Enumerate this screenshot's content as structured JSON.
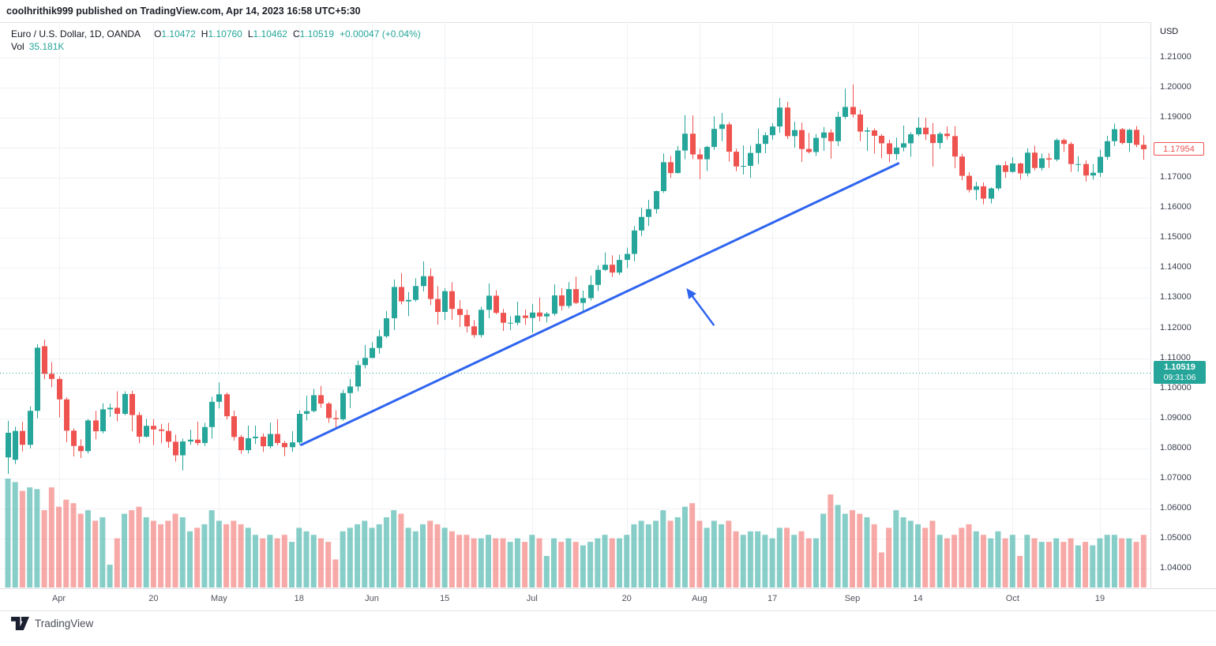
{
  "header": {
    "publisher_line": "coolhrithik999 published on TradingView.com, Apr 14, 2023 16:58 UTC+5:30"
  },
  "legend": {
    "title": "Euro / U.S. Dollar, 1D, OANDA",
    "o_label": "O",
    "o_value": "1.10472",
    "h_label": "H",
    "h_value": "1.10760",
    "l_label": "L",
    "l_value": "1.10462",
    "c_label": "C",
    "c_value": "1.10519",
    "change": "+0.00047 (+0.04%)",
    "vol_label": "Vol",
    "vol_value": "35.181K"
  },
  "price_axis": {
    "currency": "USD",
    "ticks": [
      "1.21000",
      "1.20000",
      "1.19000",
      "1.18000",
      "1.17000",
      "1.16000",
      "1.15000",
      "1.14000",
      "1.13000",
      "1.12000",
      "1.11000",
      "1.10000",
      "1.09000",
      "1.08000",
      "1.07000",
      "1.06000",
      "1.05000",
      "1.04000"
    ],
    "last_price": "1.17954",
    "current_price": "1.10519",
    "countdown": "09:31:06"
  },
  "time_axis": {
    "ticks": [
      {
        "day": 7,
        "label": "Apr"
      },
      {
        "day": 20,
        "label": "20"
      },
      {
        "day": 29,
        "label": "May"
      },
      {
        "day": 40,
        "label": "18"
      },
      {
        "day": 50,
        "label": "Jun"
      },
      {
        "day": 60,
        "label": "15"
      },
      {
        "day": 72,
        "label": "Jul"
      },
      {
        "day": 85,
        "label": "20"
      },
      {
        "day": 95,
        "label": "Aug"
      },
      {
        "day": 105,
        "label": "17"
      },
      {
        "day": 116,
        "label": "Sep"
      },
      {
        "day": 125,
        "label": "14"
      },
      {
        "day": 138,
        "label": "Oct"
      },
      {
        "day": 150,
        "label": "19"
      }
    ]
  },
  "footer": {
    "brand": "TradingView"
  },
  "colors": {
    "up": "#26a69a",
    "down": "#ef5350",
    "vol_up": "rgba(38,166,154,0.55)",
    "vol_down": "rgba(239,83,80,0.5)",
    "trendline": "#2e64f0",
    "current_line": "#26a69a",
    "grid": "#f0f1f4",
    "axis_text": "#3c4150"
  },
  "chart_data": {
    "type": "candlestick",
    "title": "Euro / U.S. Dollar, 1D, OANDA",
    "symbol": "EUR/USD",
    "interval": "1D",
    "y_range": [
      1.04,
      1.21
    ],
    "grid": true,
    "volume_unit": "K",
    "current_price": 1.10519,
    "last_close": 1.17954,
    "candles_format": [
      "open",
      "high",
      "low",
      "close",
      "volume_k"
    ],
    "candles": [
      [
        1.077,
        1.0892,
        1.0715,
        1.0852,
        62
      ],
      [
        1.0762,
        1.0872,
        1.0748,
        1.0858,
        60
      ],
      [
        1.0858,
        1.0888,
        1.079,
        1.0812,
        55
      ],
      [
        1.0812,
        1.094,
        1.08,
        1.0925,
        57
      ],
      [
        1.0925,
        1.1147,
        1.09,
        1.1135,
        56
      ],
      [
        1.114,
        1.1162,
        1.103,
        1.1048,
        44
      ],
      [
        1.1048,
        1.1087,
        1.1003,
        1.1031,
        57
      ],
      [
        1.1031,
        1.1039,
        1.0903,
        1.0963,
        46
      ],
      [
        1.0963,
        1.097,
        1.082,
        1.0859,
        50
      ],
      [
        1.0859,
        1.0867,
        1.0773,
        1.0808,
        48
      ],
      [
        1.0808,
        1.083,
        1.0768,
        1.0791,
        42
      ],
      [
        1.0791,
        1.0898,
        1.0783,
        1.0893,
        44
      ],
      [
        1.0893,
        1.0925,
        1.083,
        1.0857,
        38
      ],
      [
        1.0857,
        1.095,
        1.085,
        1.093,
        40
      ],
      [
        1.093,
        1.0949,
        1.0905,
        1.0935,
        13
      ],
      [
        1.0935,
        1.099,
        1.089,
        1.0915,
        28
      ],
      [
        1.0915,
        1.099,
        1.091,
        1.0981,
        42
      ],
      [
        1.0981,
        1.0992,
        1.0857,
        1.0911,
        44
      ],
      [
        1.0911,
        1.0921,
        1.0817,
        1.0839,
        46
      ],
      [
        1.0839,
        1.0898,
        1.0836,
        1.0875,
        40
      ],
      [
        1.0875,
        1.0897,
        1.0811,
        1.0863,
        38
      ],
      [
        1.0863,
        1.0882,
        1.0817,
        1.0858,
        36
      ],
      [
        1.0858,
        1.0885,
        1.0802,
        1.0822,
        38
      ],
      [
        1.0822,
        1.0846,
        1.0756,
        1.0777,
        42
      ],
      [
        1.0777,
        1.0833,
        1.0727,
        1.0823,
        40
      ],
      [
        1.0823,
        1.0862,
        1.0812,
        1.0829,
        32
      ],
      [
        1.0829,
        1.0889,
        1.081,
        1.0818,
        34
      ],
      [
        1.0818,
        1.0885,
        1.0808,
        1.0871,
        36
      ],
      [
        1.0871,
        1.0972,
        1.0833,
        1.0955,
        44
      ],
      [
        1.0955,
        1.1019,
        1.0933,
        1.098,
        38
      ],
      [
        1.098,
        1.0986,
        1.0896,
        1.0907,
        36
      ],
      [
        1.0907,
        1.0926,
        1.0826,
        1.0838,
        38
      ],
      [
        1.0838,
        1.0845,
        1.0782,
        1.0794,
        36
      ],
      [
        1.0794,
        1.0876,
        1.0783,
        1.0834,
        34
      ],
      [
        1.0834,
        1.0876,
        1.0815,
        1.0839,
        30
      ],
      [
        1.0839,
        1.085,
        1.0788,
        1.0807,
        28
      ],
      [
        1.0807,
        1.0886,
        1.08,
        1.0848,
        30
      ],
      [
        1.0848,
        1.0897,
        1.081,
        1.0818,
        28
      ],
      [
        1.0818,
        1.0825,
        1.0774,
        1.0804,
        30
      ],
      [
        1.0804,
        1.0857,
        1.0789,
        1.082,
        26
      ],
      [
        1.082,
        1.0927,
        1.0812,
        1.0915,
        34
      ],
      [
        1.0915,
        1.0975,
        1.0893,
        1.0924,
        32
      ],
      [
        1.0924,
        1.0998,
        1.092,
        1.0977,
        30
      ],
      [
        1.0977,
        1.1008,
        1.0935,
        1.0949,
        28
      ],
      [
        1.0949,
        1.0954,
        1.0885,
        1.0901,
        26
      ],
      [
        1.0901,
        1.0927,
        1.087,
        1.0897,
        16
      ],
      [
        1.0897,
        1.0995,
        1.0892,
        1.0984,
        32
      ],
      [
        1.0984,
        1.1031,
        1.0934,
        1.1006,
        34
      ],
      [
        1.1006,
        1.1092,
        1.099,
        1.1077,
        36
      ],
      [
        1.1077,
        1.1144,
        1.1066,
        1.1101,
        38
      ],
      [
        1.1101,
        1.1153,
        1.11,
        1.1134,
        34
      ],
      [
        1.1134,
        1.1195,
        1.1115,
        1.1173,
        36
      ],
      [
        1.1173,
        1.1257,
        1.1167,
        1.1233,
        40
      ],
      [
        1.1233,
        1.1362,
        1.1194,
        1.1337,
        44
      ],
      [
        1.1337,
        1.1383,
        1.1279,
        1.1289,
        42
      ],
      [
        1.1289,
        1.132,
        1.124,
        1.1294,
        34
      ],
      [
        1.1294,
        1.1366,
        1.1288,
        1.134,
        32
      ],
      [
        1.134,
        1.1422,
        1.1322,
        1.1373,
        36
      ],
      [
        1.1373,
        1.1398,
        1.1277,
        1.1297,
        38
      ],
      [
        1.1297,
        1.134,
        1.1212,
        1.1254,
        36
      ],
      [
        1.1254,
        1.1333,
        1.1227,
        1.1323,
        34
      ],
      [
        1.1323,
        1.1353,
        1.1228,
        1.1264,
        32
      ],
      [
        1.1264,
        1.1294,
        1.1204,
        1.1244,
        30
      ],
      [
        1.1244,
        1.1262,
        1.1186,
        1.1206,
        30
      ],
      [
        1.1206,
        1.1227,
        1.1168,
        1.1177,
        28
      ],
      [
        1.1177,
        1.1271,
        1.1169,
        1.1261,
        28
      ],
      [
        1.1261,
        1.1349,
        1.1233,
        1.1308,
        30
      ],
      [
        1.1308,
        1.1326,
        1.1246,
        1.1251,
        28
      ],
      [
        1.1251,
        1.1264,
        1.1191,
        1.1218,
        28
      ],
      [
        1.1218,
        1.124,
        1.1194,
        1.1218,
        26
      ],
      [
        1.1218,
        1.1288,
        1.121,
        1.1242,
        28
      ],
      [
        1.1242,
        1.1262,
        1.1211,
        1.1234,
        26
      ],
      [
        1.1234,
        1.1281,
        1.1185,
        1.1252,
        30
      ],
      [
        1.1252,
        1.1302,
        1.1223,
        1.1239,
        28
      ],
      [
        1.1239,
        1.1254,
        1.1219,
        1.1248,
        18
      ],
      [
        1.1248,
        1.1346,
        1.1241,
        1.1309,
        28
      ],
      [
        1.1309,
        1.1333,
        1.1259,
        1.1274,
        26
      ],
      [
        1.1274,
        1.1353,
        1.1266,
        1.133,
        28
      ],
      [
        1.133,
        1.1371,
        1.128,
        1.1284,
        26
      ],
      [
        1.1284,
        1.1325,
        1.1254,
        1.13,
        24
      ],
      [
        1.13,
        1.1375,
        1.1292,
        1.1344,
        26
      ],
      [
        1.1344,
        1.1409,
        1.1324,
        1.1394,
        28
      ],
      [
        1.1394,
        1.1452,
        1.139,
        1.1411,
        30
      ],
      [
        1.1411,
        1.1442,
        1.137,
        1.1385,
        28
      ],
      [
        1.1385,
        1.1444,
        1.1377,
        1.1427,
        28
      ],
      [
        1.1427,
        1.1468,
        1.14,
        1.1447,
        30
      ],
      [
        1.1447,
        1.154,
        1.1422,
        1.1525,
        36
      ],
      [
        1.1525,
        1.1601,
        1.1507,
        1.157,
        38
      ],
      [
        1.157,
        1.1627,
        1.154,
        1.1596,
        36
      ],
      [
        1.1596,
        1.1658,
        1.1581,
        1.1656,
        38
      ],
      [
        1.1656,
        1.1781,
        1.165,
        1.1752,
        44
      ],
      [
        1.1752,
        1.1773,
        1.17,
        1.1716,
        38
      ],
      [
        1.1716,
        1.1806,
        1.1715,
        1.1791,
        40
      ],
      [
        1.1791,
        1.1909,
        1.1762,
        1.1847,
        46
      ],
      [
        1.1847,
        1.1908,
        1.1762,
        1.1778,
        48
      ],
      [
        1.1778,
        1.1797,
        1.1696,
        1.1762,
        38
      ],
      [
        1.1762,
        1.1807,
        1.1723,
        1.1803,
        34
      ],
      [
        1.1803,
        1.1905,
        1.1794,
        1.1863,
        38
      ],
      [
        1.1863,
        1.1916,
        1.1822,
        1.1878,
        36
      ],
      [
        1.1878,
        1.1886,
        1.1754,
        1.1787,
        38
      ],
      [
        1.1787,
        1.1797,
        1.1722,
        1.1738,
        32
      ],
      [
        1.1738,
        1.1808,
        1.1711,
        1.174,
        30
      ],
      [
        1.174,
        1.1807,
        1.17,
        1.1783,
        32
      ],
      [
        1.1783,
        1.1864,
        1.1746,
        1.1813,
        32
      ],
      [
        1.1813,
        1.1851,
        1.1782,
        1.1842,
        30
      ],
      [
        1.1842,
        1.1882,
        1.1827,
        1.1871,
        28
      ],
      [
        1.1871,
        1.1966,
        1.185,
        1.1934,
        34
      ],
      [
        1.1934,
        1.1953,
        1.1829,
        1.1839,
        34
      ],
      [
        1.1839,
        1.1887,
        1.18,
        1.1859,
        30
      ],
      [
        1.1859,
        1.1884,
        1.1753,
        1.1796,
        32
      ],
      [
        1.1796,
        1.1849,
        1.1781,
        1.1786,
        28
      ],
      [
        1.1786,
        1.1846,
        1.1773,
        1.1833,
        28
      ],
      [
        1.1833,
        1.1869,
        1.179,
        1.1851,
        42
      ],
      [
        1.1851,
        1.1862,
        1.1764,
        1.1822,
        53
      ],
      [
        1.1822,
        1.192,
        1.1806,
        1.1903,
        47
      ],
      [
        1.1903,
        1.1997,
        1.1896,
        1.1936,
        42
      ],
      [
        1.1936,
        1.2011,
        1.1901,
        1.1911,
        44
      ],
      [
        1.1911,
        1.1927,
        1.1822,
        1.1854,
        42
      ],
      [
        1.1854,
        1.1868,
        1.1789,
        1.1858,
        40
      ],
      [
        1.1858,
        1.1865,
        1.1781,
        1.184,
        36
      ],
      [
        1.184,
        1.1846,
        1.1765,
        1.1815,
        20
      ],
      [
        1.1815,
        1.1827,
        1.1752,
        1.1779,
        34
      ],
      [
        1.1779,
        1.1834,
        1.176,
        1.1801,
        44
      ],
      [
        1.1801,
        1.1874,
        1.1788,
        1.1815,
        40
      ],
      [
        1.1815,
        1.1852,
        1.177,
        1.1845,
        38
      ],
      [
        1.1845,
        1.1901,
        1.1839,
        1.1867,
        36
      ],
      [
        1.1867,
        1.19,
        1.1826,
        1.1845,
        34
      ],
      [
        1.1845,
        1.1882,
        1.1737,
        1.1816,
        38
      ],
      [
        1.1816,
        1.1853,
        1.1797,
        1.1847,
        30
      ],
      [
        1.1847,
        1.1871,
        1.1827,
        1.1839,
        28
      ],
      [
        1.1839,
        1.1872,
        1.1732,
        1.1771,
        30
      ],
      [
        1.1771,
        1.178,
        1.1692,
        1.1707,
        34
      ],
      [
        1.1707,
        1.1719,
        1.1651,
        1.166,
        36
      ],
      [
        1.166,
        1.1687,
        1.1626,
        1.1672,
        32
      ],
      [
        1.1672,
        1.1685,
        1.1612,
        1.1631,
        30
      ],
      [
        1.1631,
        1.1668,
        1.1615,
        1.1665,
        28
      ],
      [
        1.1665,
        1.1745,
        1.1658,
        1.1742,
        32
      ],
      [
        1.1742,
        1.1755,
        1.17,
        1.172,
        28
      ],
      [
        1.172,
        1.1769,
        1.1717,
        1.1748,
        30
      ],
      [
        1.1748,
        1.1751,
        1.1695,
        1.1715,
        18
      ],
      [
        1.1715,
        1.1798,
        1.1705,
        1.1784,
        30
      ],
      [
        1.1784,
        1.1807,
        1.1725,
        1.1733,
        28
      ],
      [
        1.1733,
        1.1781,
        1.1724,
        1.1765,
        26
      ],
      [
        1.1765,
        1.1782,
        1.1733,
        1.1761,
        26
      ],
      [
        1.1761,
        1.1831,
        1.1755,
        1.1826,
        28
      ],
      [
        1.1826,
        1.1831,
        1.1786,
        1.1813,
        26
      ],
      [
        1.1813,
        1.182,
        1.172,
        1.1746,
        28
      ],
      [
        1.1746,
        1.1772,
        1.1721,
        1.1746,
        24
      ],
      [
        1.1746,
        1.1758,
        1.1688,
        1.1708,
        26
      ],
      [
        1.1708,
        1.1746,
        1.1694,
        1.1717,
        24
      ],
      [
        1.1717,
        1.1794,
        1.1703,
        1.177,
        28
      ],
      [
        1.177,
        1.184,
        1.176,
        1.1822,
        30
      ],
      [
        1.1822,
        1.1881,
        1.1806,
        1.1862,
        30
      ],
      [
        1.1862,
        1.1866,
        1.1811,
        1.1816,
        28
      ],
      [
        1.1816,
        1.1864,
        1.1786,
        1.186,
        28
      ],
      [
        1.186,
        1.1872,
        1.1802,
        1.181,
        26
      ],
      [
        1.181,
        1.1842,
        1.176,
        1.17954,
        30
      ]
    ],
    "trendline": {
      "p1": {
        "day": 40.3,
        "price": 1.0812
      },
      "p2": {
        "day": 122.3,
        "price": 1.1748
      }
    },
    "arrow": {
      "tail": {
        "day": 97.0,
        "price": 1.1209
      },
      "head": {
        "day": 93.2,
        "price": 1.1333
      }
    }
  }
}
